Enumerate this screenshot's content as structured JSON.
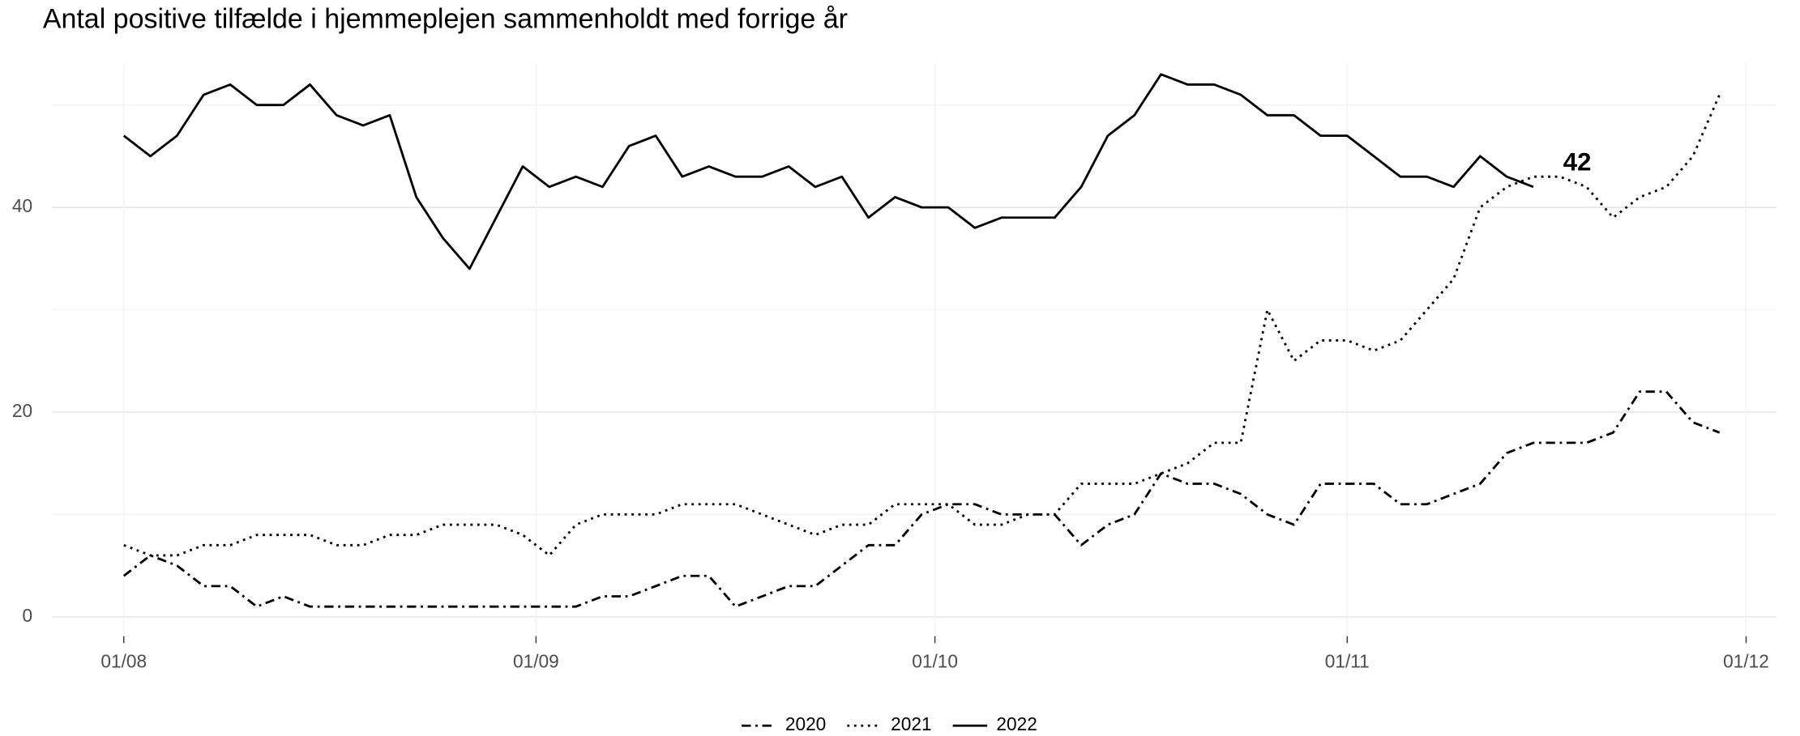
{
  "chart_data": {
    "type": "line",
    "title": "Antal positive tilfælde i hjemmeplejen sammenholdt med forrige år",
    "x": [
      0,
      2,
      4,
      6,
      8,
      10,
      12,
      14,
      16,
      18,
      20,
      22,
      24,
      26,
      28,
      30,
      32,
      34,
      36,
      38,
      40,
      42,
      44,
      46,
      48,
      50,
      52,
      54,
      56,
      58,
      60,
      62,
      64,
      66,
      68,
      70,
      72,
      74,
      76,
      78,
      80,
      82,
      84,
      86,
      88,
      90,
      92,
      94,
      96,
      98,
      100,
      102,
      104,
      106,
      108,
      110,
      112,
      114,
      116,
      118,
      120
    ],
    "xlim": [
      -5.4,
      124.3
    ],
    "xticks": [
      {
        "value": 0,
        "label": "01/08"
      },
      {
        "value": 31,
        "label": "01/09"
      },
      {
        "value": 61,
        "label": "01/10"
      },
      {
        "value": 92,
        "label": "01/11"
      },
      {
        "value": 122,
        "label": "01/12"
      }
    ],
    "ylim": [
      -1.9,
      54.1
    ],
    "yticks": [
      0,
      20,
      40
    ],
    "yminor": [
      10,
      30,
      50
    ],
    "grid": true,
    "legend": "bottom",
    "series": [
      {
        "name": "2020",
        "color": "#000000",
        "linestyle": "dashdot",
        "values": [
          4,
          6,
          5,
          3,
          3,
          1,
          2,
          1,
          1,
          1,
          1,
          1,
          1,
          1,
          1,
          1,
          1,
          1,
          2,
          2,
          3,
          4,
          4,
          1,
          2,
          3,
          3,
          5,
          7,
          7,
          10,
          11,
          11,
          10,
          10,
          10,
          7,
          9,
          10,
          14,
          13,
          13,
          12,
          10,
          9,
          13,
          13,
          13,
          11,
          11,
          12,
          13,
          16,
          17,
          17,
          17,
          18,
          22,
          22,
          19,
          18
        ]
      },
      {
        "name": "2021",
        "color": "#000000",
        "linestyle": "dotted",
        "values": [
          7,
          6,
          6,
          7,
          7,
          8,
          8,
          8,
          7,
          7,
          8,
          8,
          9,
          9,
          9,
          8,
          6,
          9,
          10,
          10,
          10,
          11,
          11,
          11,
          10,
          9,
          8,
          9,
          9,
          11,
          11,
          11,
          9,
          9,
          10,
          10,
          13,
          13,
          13,
          14,
          15,
          17,
          17,
          30,
          25,
          27,
          27,
          26,
          27,
          30,
          33,
          40,
          42,
          43,
          43,
          42,
          39,
          41,
          42,
          45,
          51
        ]
      },
      {
        "name": "2022",
        "color": "#000000",
        "linestyle": "solid",
        "values": [
          47,
          45,
          47,
          51,
          52,
          50,
          50,
          52,
          49,
          48,
          49,
          41,
          37,
          34,
          39,
          44,
          42,
          43,
          42,
          46,
          47,
          43,
          44,
          43,
          43,
          44,
          42,
          43,
          39,
          41,
          40,
          40,
          38,
          39,
          39,
          39,
          42,
          47,
          49,
          53,
          52,
          52,
          51,
          49,
          49,
          47,
          47,
          45,
          43,
          43,
          42,
          45,
          43,
          42,
          null,
          null,
          null,
          null,
          null,
          null,
          null
        ]
      }
    ],
    "annotation": {
      "text": "42"
    }
  }
}
